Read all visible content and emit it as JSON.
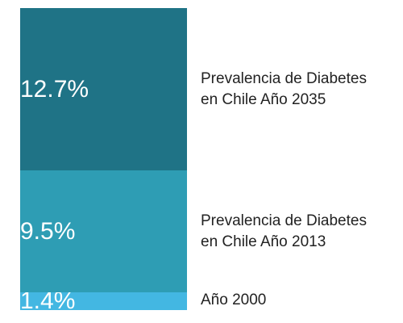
{
  "chart_data": {
    "type": "bar",
    "stacked": true,
    "orientation": "vertical",
    "segments": [
      {
        "value_label": "1.4%",
        "value": 1.4,
        "label_lines": [
          "Año 2000"
        ],
        "color": "#43B7E2"
      },
      {
        "value_label": "9.5%",
        "value": 9.5,
        "label_lines": [
          "Prevalencia de Diabetes",
          "en Chile Año 2013"
        ],
        "color": "#2E9DB4"
      },
      {
        "value_label": "12.7%",
        "value": 12.7,
        "label_lines": [
          "Prevalencia de Diabetes",
          "en Chile Año 2035"
        ],
        "color": "#1F7386"
      }
    ]
  }
}
